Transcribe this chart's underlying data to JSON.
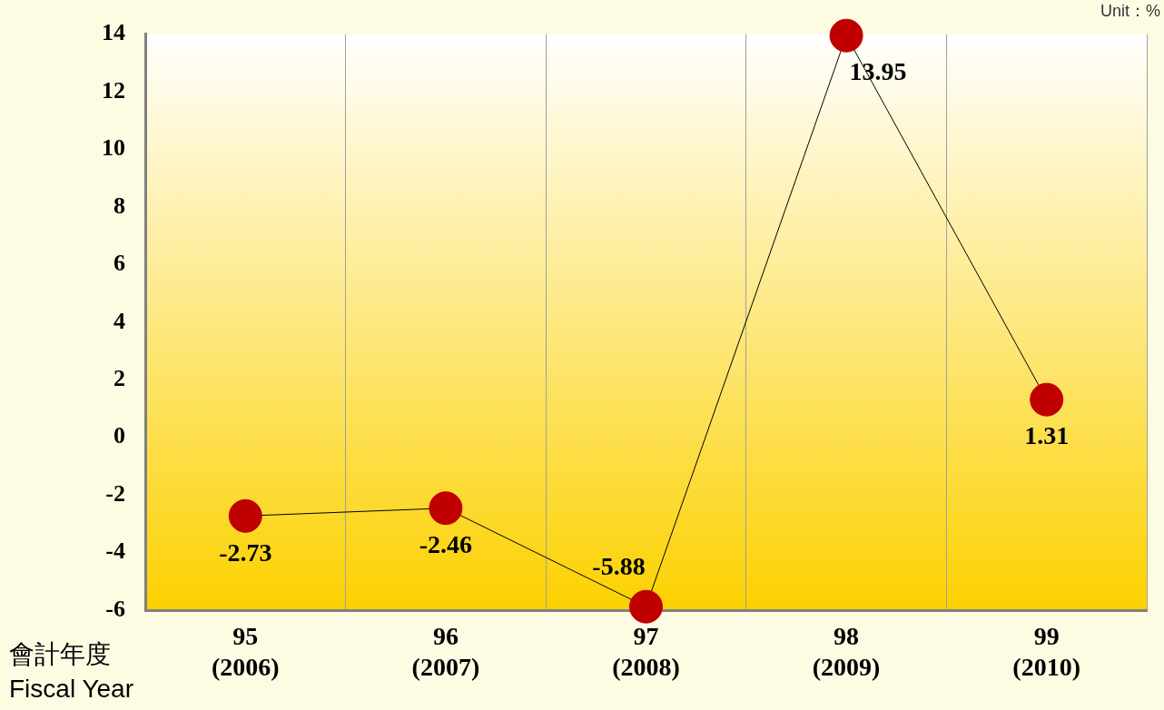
{
  "chart_data": {
    "type": "line",
    "categories": [
      "95 (2006)",
      "96 (2007)",
      "97 (2008)",
      "98 (2009)",
      "99 (2010)"
    ],
    "series": [
      {
        "color": "#c00000",
        "values": [
          -2.73,
          -2.46,
          -5.88,
          13.95,
          1.31
        ]
      }
    ],
    "xlabel": "會計年度\nFiscal Year",
    "annotations": [
      "Unit：%"
    ],
    "ylim": [
      -6,
      14
    ],
    "yticks": [
      -6,
      -4,
      -2,
      0,
      2,
      4,
      6,
      8,
      10,
      12,
      14
    ],
    "grid": "x",
    "marker": "circle",
    "line_style": "solid",
    "data_labels": true,
    "legend": false
  }
}
